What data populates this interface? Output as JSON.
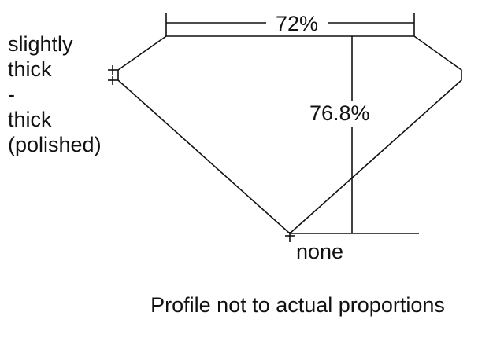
{
  "diagram": {
    "table_percent": "72%",
    "depth_percent": "76.8%",
    "girdle_lines": [
      "slightly",
      "thick",
      "-",
      "thick",
      "(polished)"
    ],
    "culet": "none",
    "caption": "Profile not to actual proportions",
    "line_color": "#111111"
  }
}
